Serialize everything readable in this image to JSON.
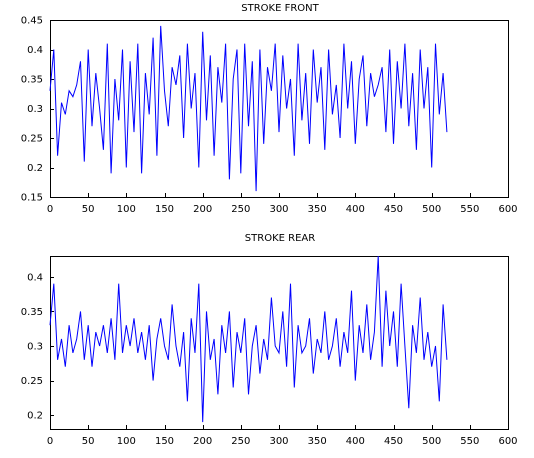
{
  "chart_data": [
    {
      "type": "line",
      "title": "STROKE FRONT",
      "xlabel": "",
      "ylabel": "",
      "xlim": [
        0,
        600
      ],
      "ylim": [
        0.15,
        0.45
      ],
      "xticks": [
        0,
        50,
        100,
        150,
        200,
        250,
        300,
        350,
        400,
        450,
        500,
        550,
        600
      ],
      "yticks": [
        0.15,
        0.2,
        0.25,
        0.3,
        0.35,
        0.4,
        0.45
      ],
      "xtick_labels": [
        "0",
        "50",
        "100",
        "150",
        "200",
        "250",
        "300",
        "350",
        "400",
        "450",
        "500",
        "550",
        "600"
      ],
      "ytick_labels": [
        "0.15",
        "0.2",
        "0.25",
        "0.3",
        "0.35",
        "0.4",
        "0.45"
      ],
      "grid": false,
      "color": "#0000ff",
      "series": [
        {
          "x": [
            0,
            5,
            10,
            15,
            20,
            25,
            30,
            35,
            40,
            45,
            50,
            55,
            60,
            65,
            70,
            75,
            80,
            85,
            90,
            95,
            100,
            105,
            110,
            115,
            120,
            125,
            130,
            135,
            140,
            145,
            150,
            155,
            160,
            165,
            170,
            175,
            180,
            185,
            190,
            195,
            200,
            205,
            210,
            215,
            220,
            225,
            230,
            235,
            240,
            245,
            250,
            255,
            260,
            265,
            270,
            275,
            280,
            285,
            290,
            295,
            300,
            305,
            310,
            315,
            320,
            325,
            330,
            335,
            340,
            345,
            350,
            355,
            360,
            365,
            370,
            375,
            380,
            385,
            390,
            395,
            400,
            405,
            410,
            415,
            420,
            425,
            430,
            435,
            440,
            445,
            450,
            455,
            460,
            465,
            470,
            475,
            480,
            485,
            490,
            495,
            500,
            505,
            510,
            515,
            520
          ],
          "y": [
            0.33,
            0.4,
            0.22,
            0.31,
            0.29,
            0.33,
            0.32,
            0.34,
            0.38,
            0.21,
            0.4,
            0.27,
            0.36,
            0.3,
            0.23,
            0.41,
            0.19,
            0.35,
            0.28,
            0.4,
            0.2,
            0.38,
            0.26,
            0.41,
            0.19,
            0.36,
            0.29,
            0.42,
            0.22,
            0.44,
            0.33,
            0.27,
            0.37,
            0.34,
            0.39,
            0.25,
            0.41,
            0.3,
            0.36,
            0.2,
            0.43,
            0.28,
            0.39,
            0.22,
            0.37,
            0.31,
            0.41,
            0.18,
            0.35,
            0.4,
            0.19,
            0.41,
            0.27,
            0.38,
            0.16,
            0.4,
            0.24,
            0.37,
            0.33,
            0.41,
            0.26,
            0.39,
            0.3,
            0.35,
            0.22,
            0.41,
            0.28,
            0.36,
            0.24,
            0.4,
            0.31,
            0.37,
            0.23,
            0.4,
            0.29,
            0.34,
            0.25,
            0.41,
            0.3,
            0.38,
            0.24,
            0.35,
            0.39,
            0.27,
            0.36,
            0.32,
            0.34,
            0.37,
            0.26,
            0.4,
            0.24,
            0.38,
            0.3,
            0.41,
            0.27,
            0.36,
            0.23,
            0.4,
            0.3,
            0.37,
            0.2,
            0.41,
            0.29,
            0.36,
            0.26
          ]
        }
      ]
    },
    {
      "type": "line",
      "title": "STROKE REAR",
      "xlabel": "",
      "ylabel": "",
      "xlim": [
        0,
        600
      ],
      "ylim": [
        0.18,
        0.43
      ],
      "xticks": [
        0,
        50,
        100,
        150,
        200,
        250,
        300,
        350,
        400,
        450,
        500,
        550,
        600
      ],
      "yticks": [
        0.2,
        0.25,
        0.3,
        0.35,
        0.4
      ],
      "xtick_labels": [
        "0",
        "50",
        "100",
        "150",
        "200",
        "250",
        "300",
        "350",
        "400",
        "450",
        "500",
        "550",
        "600"
      ],
      "ytick_labels": [
        "0.2",
        "0.25",
        "0.3",
        "0.35",
        "0.4"
      ],
      "grid": false,
      "color": "#0000ff",
      "series": [
        {
          "x": [
            0,
            5,
            10,
            15,
            20,
            25,
            30,
            35,
            40,
            45,
            50,
            55,
            60,
            65,
            70,
            75,
            80,
            85,
            90,
            95,
            100,
            105,
            110,
            115,
            120,
            125,
            130,
            135,
            140,
            145,
            150,
            155,
            160,
            165,
            170,
            175,
            180,
            185,
            190,
            195,
            200,
            205,
            210,
            215,
            220,
            225,
            230,
            235,
            240,
            245,
            250,
            255,
            260,
            265,
            270,
            275,
            280,
            285,
            290,
            295,
            300,
            305,
            310,
            315,
            320,
            325,
            330,
            335,
            340,
            345,
            350,
            355,
            360,
            365,
            370,
            375,
            380,
            385,
            390,
            395,
            400,
            405,
            410,
            415,
            420,
            425,
            430,
            435,
            440,
            445,
            450,
            455,
            460,
            465,
            470,
            475,
            480,
            485,
            490,
            495,
            500,
            505,
            510,
            515,
            520
          ],
          "y": [
            0.33,
            0.39,
            0.28,
            0.31,
            0.27,
            0.33,
            0.29,
            0.31,
            0.35,
            0.28,
            0.33,
            0.27,
            0.32,
            0.3,
            0.33,
            0.29,
            0.34,
            0.28,
            0.39,
            0.29,
            0.33,
            0.3,
            0.34,
            0.29,
            0.32,
            0.28,
            0.33,
            0.25,
            0.31,
            0.34,
            0.3,
            0.28,
            0.36,
            0.3,
            0.27,
            0.32,
            0.22,
            0.34,
            0.29,
            0.39,
            0.19,
            0.35,
            0.28,
            0.31,
            0.23,
            0.33,
            0.29,
            0.35,
            0.24,
            0.32,
            0.29,
            0.34,
            0.23,
            0.3,
            0.33,
            0.26,
            0.31,
            0.28,
            0.37,
            0.3,
            0.29,
            0.35,
            0.27,
            0.39,
            0.24,
            0.33,
            0.29,
            0.3,
            0.34,
            0.26,
            0.31,
            0.29,
            0.35,
            0.28,
            0.3,
            0.34,
            0.27,
            0.32,
            0.29,
            0.38,
            0.25,
            0.33,
            0.29,
            0.36,
            0.28,
            0.32,
            0.43,
            0.27,
            0.38,
            0.3,
            0.35,
            0.27,
            0.39,
            0.3,
            0.21,
            0.33,
            0.29,
            0.37,
            0.28,
            0.32,
            0.27,
            0.3,
            0.22,
            0.36,
            0.28
          ]
        }
      ]
    }
  ]
}
